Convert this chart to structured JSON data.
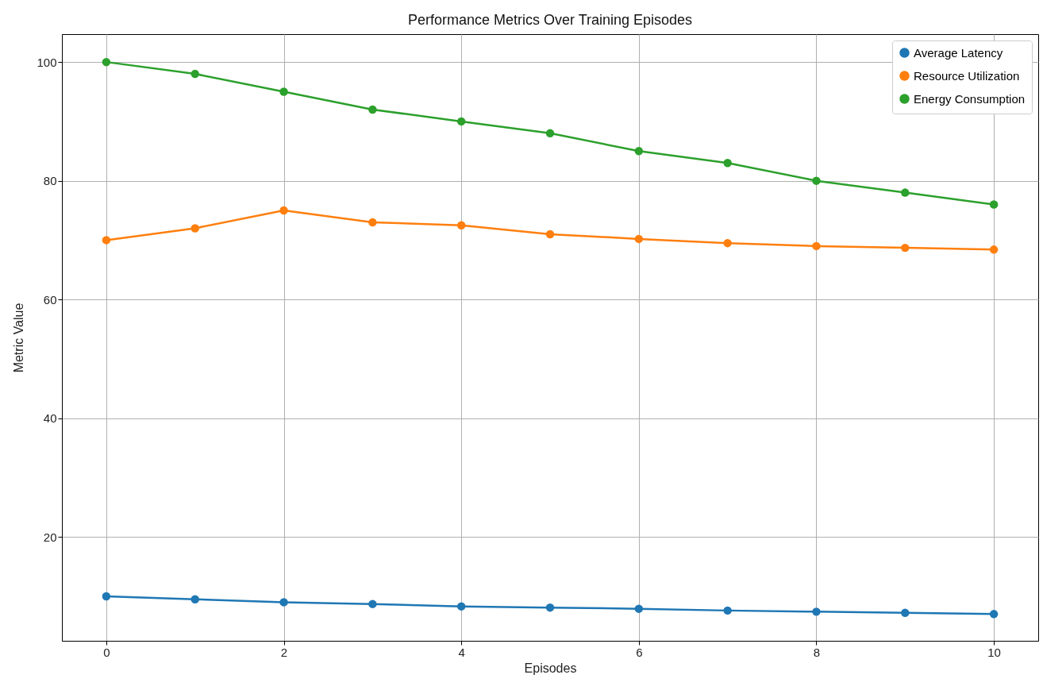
{
  "chart_data": {
    "type": "line",
    "title": "Performance Metrics Over Training Episodes",
    "xlabel": "Episodes",
    "ylabel": "Metric Value",
    "x": [
      0,
      1,
      2,
      3,
      4,
      5,
      6,
      7,
      8,
      9,
      10
    ],
    "series": [
      {
        "name": "Average Latency",
        "color": "#1f77b4",
        "values": [
          10,
          9.5,
          9,
          8.7,
          8.3,
          8.1,
          7.9,
          7.6,
          7.4,
          7.2,
          7.0
        ]
      },
      {
        "name": "Resource Utilization",
        "color": "#ff7f0e",
        "values": [
          70,
          72,
          75,
          73,
          72.5,
          71,
          70.2,
          69.5,
          69,
          68.7,
          68.4
        ]
      },
      {
        "name": "Energy Consumption",
        "color": "#2ca02c",
        "values": [
          100,
          98,
          95,
          92,
          90,
          88,
          85,
          83,
          80,
          78,
          76
        ]
      }
    ],
    "xlim": [
      -0.5,
      10.5
    ],
    "xticks": [
      0,
      2,
      4,
      6,
      8,
      10
    ],
    "ylim": [
      2.5,
      104.7
    ],
    "yticks": [
      20,
      40,
      60,
      80,
      100
    ],
    "grid": true,
    "legend": "top right",
    "marker": "circle",
    "line_style": "solid"
  }
}
